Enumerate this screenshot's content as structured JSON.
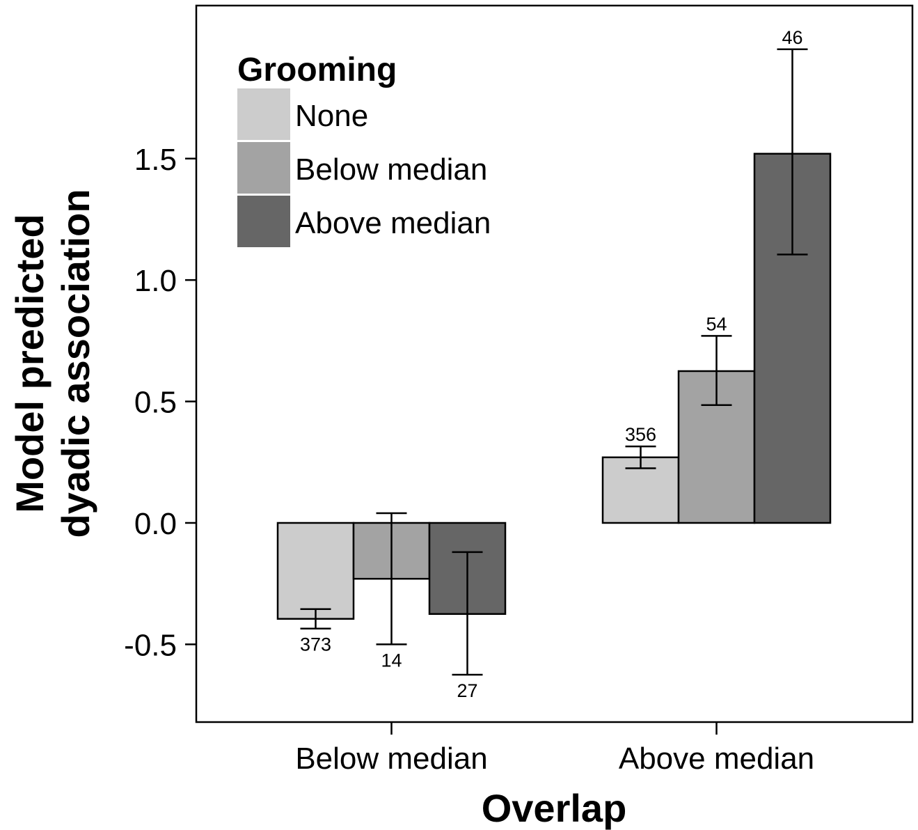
{
  "chart_data": {
    "type": "bar",
    "xlabel": "Overlap",
    "ylabel_lines": [
      "Model predicted",
      "dyadic association"
    ],
    "categories": [
      "Below median",
      "Above median"
    ],
    "ylim": [
      -0.82,
      2.13
    ],
    "yticks": [
      -0.5,
      0.0,
      0.5,
      1.0,
      1.5
    ],
    "ytick_labels": [
      "-0.5",
      "0.0",
      "0.5",
      "1.0",
      "1.5"
    ],
    "legend": {
      "title": "Grooming",
      "placement": "top-left"
    },
    "series": [
      {
        "name": "None",
        "color": "#cccccc",
        "values": [
          -0.395,
          0.27
        ],
        "err_low": [
          -0.435,
          0.225
        ],
        "err_high": [
          -0.355,
          0.315
        ],
        "n_labels": [
          "373",
          "356"
        ]
      },
      {
        "name": "Below median",
        "color": "#a3a3a3",
        "values": [
          -0.23,
          0.625
        ],
        "err_low": [
          -0.5,
          0.485
        ],
        "err_high": [
          0.04,
          0.77
        ],
        "n_labels": [
          "14",
          "54"
        ]
      },
      {
        "name": "Above median",
        "color": "#666666",
        "values": [
          -0.375,
          1.52
        ],
        "err_low": [
          -0.625,
          1.105
        ],
        "err_high": [
          -0.12,
          1.95
        ],
        "n_labels": [
          "27",
          "46"
        ]
      }
    ]
  }
}
